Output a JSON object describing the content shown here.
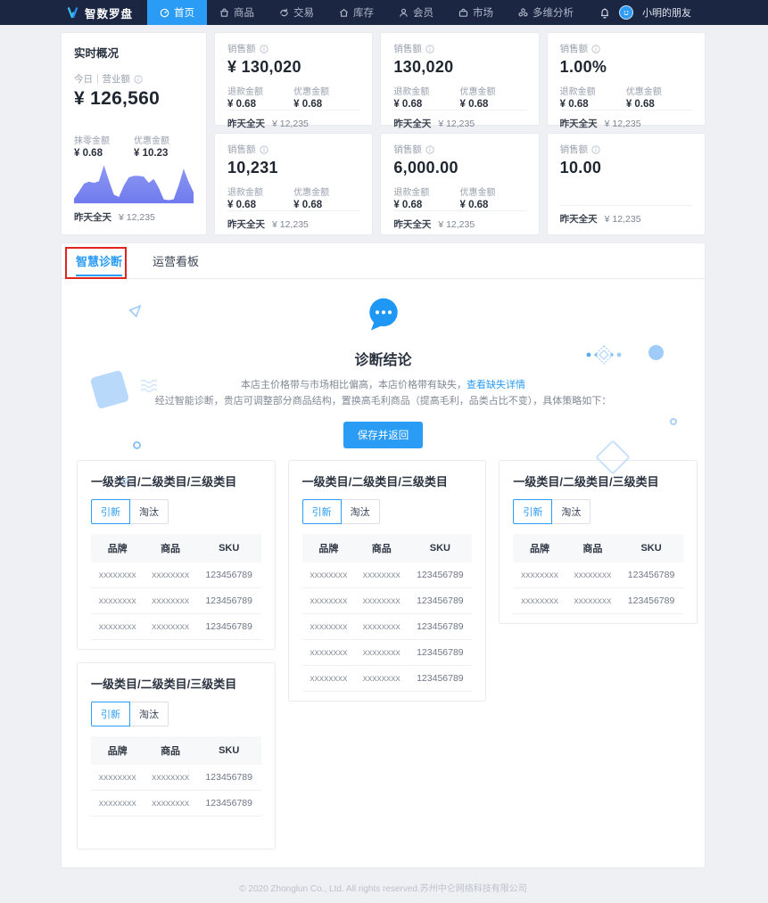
{
  "navbar": {
    "brand": "智数罗盘",
    "items": [
      {
        "label": "首页",
        "active": true
      },
      {
        "label": "商品",
        "active": false
      },
      {
        "label": "交易",
        "active": false
      },
      {
        "label": "库存",
        "active": false
      },
      {
        "label": "会员",
        "active": false
      },
      {
        "label": "市场",
        "active": false
      },
      {
        "label": "多维分析",
        "active": false
      }
    ],
    "user_name": "小明的朋友"
  },
  "realtime": {
    "title": "实时概况",
    "metric_label": "今日｜营业额",
    "metric_value": "¥ 126,560",
    "subs": [
      {
        "label": "抹零金额",
        "value": "¥ 0.68"
      },
      {
        "label": "优惠金额",
        "value": "¥ 10.23"
      }
    ],
    "footer_label": "昨天全天",
    "footer_value": "¥ 12,235"
  },
  "chart_data": {
    "type": "area",
    "title": "今日营业额走势 sparkline",
    "x": [
      0,
      1,
      2,
      3,
      4,
      5,
      6,
      7,
      8,
      9,
      10,
      11,
      12,
      13,
      14,
      15,
      16,
      17,
      18,
      19,
      20,
      21,
      22,
      23,
      24
    ],
    "values": [
      12,
      30,
      50,
      55,
      52,
      56,
      97,
      58,
      22,
      16,
      45,
      66,
      70,
      70,
      68,
      52,
      62,
      40,
      10,
      8,
      10,
      45,
      88,
      55,
      28
    ],
    "ylim": [
      0,
      100
    ],
    "xlabel": "",
    "ylabel": "",
    "grid": false,
    "legend": "none",
    "color": "#7b86ef"
  },
  "stat_cards": [
    {
      "title": "销售额",
      "value": "¥ 130,020",
      "subs": [
        {
          "label": "退款金额",
          "value": "¥ 0.68"
        },
        {
          "label": "优惠金额",
          "value": "¥ 0.68"
        }
      ],
      "footer_label": "昨天全天",
      "footer_value": "¥ 12,235"
    },
    {
      "title": "销售额",
      "value": "130,020",
      "subs": [
        {
          "label": "退款金额",
          "value": "¥ 0.68"
        },
        {
          "label": "优惠金额",
          "value": "¥ 0.68"
        }
      ],
      "footer_label": "昨天全天",
      "footer_value": "¥ 12,235"
    },
    {
      "title": "销售额",
      "value": "1.00%",
      "subs": [
        {
          "label": "退款金额",
          "value": "¥ 0.68"
        },
        {
          "label": "优惠金额",
          "value": "¥ 0.68"
        }
      ],
      "footer_label": "昨天全天",
      "footer_value": "¥ 12,235"
    },
    {
      "title": "销售额",
      "value": "10,231",
      "subs": [
        {
          "label": "退款金额",
          "value": "¥ 0.68"
        },
        {
          "label": "优惠金额",
          "value": "¥ 0.68"
        }
      ],
      "footer_label": "昨天全天",
      "footer_value": "¥ 12,235"
    },
    {
      "title": "销售额",
      "value": "6,000.00",
      "subs": [
        {
          "label": "退款金额",
          "value": "¥ 0.68"
        },
        {
          "label": "优惠金额",
          "value": "¥ 0.68"
        }
      ],
      "footer_label": "昨天全天",
      "footer_value": "¥ 12,235"
    },
    {
      "title": "销售额",
      "value": "10.00",
      "subs": [],
      "footer_label": "昨天全天",
      "footer_value": "¥ 12,235"
    }
  ],
  "tabs": {
    "items": [
      {
        "label": "智慧诊断",
        "active": true
      },
      {
        "label": "运营看板",
        "active": false
      }
    ]
  },
  "diagnosis": {
    "title": "诊断结论",
    "line1_prefix": "本店主价格带与市场相比偏高，本店价格带有缺失，",
    "line1_link": "查看缺失详情",
    "line2": "经过智能诊断，贵店可调整部分商品结构，置换高毛利商品（提高毛利，品类占比不变），具体策略如下：",
    "save_button": "保存并返回"
  },
  "category_cards": [
    {
      "title": "一级类目/二级类目/三级类目",
      "btn_active": "引新",
      "btn_inactive": "淘汰",
      "headers": [
        "品牌",
        "商品",
        "SKU"
      ],
      "rows": [
        [
          "xxxxxxxx",
          "xxxxxxxx",
          "123456789"
        ],
        [
          "xxxxxxxx",
          "xxxxxxxx",
          "123456789"
        ],
        [
          "xxxxxxxx",
          "xxxxxxxx",
          "123456789"
        ]
      ]
    },
    {
      "title": "一级类目/二级类目/三级类目",
      "btn_active": "引新",
      "btn_inactive": "淘汰",
      "headers": [
        "品牌",
        "商品",
        "SKU"
      ],
      "rows": [
        [
          "xxxxxxxx",
          "xxxxxxxx",
          "123456789"
        ],
        [
          "xxxxxxxx",
          "xxxxxxxx",
          "123456789"
        ],
        [
          "xxxxxxxx",
          "xxxxxxxx",
          "123456789"
        ],
        [
          "xxxxxxxx",
          "xxxxxxxx",
          "123456789"
        ],
        [
          "xxxxxxxx",
          "xxxxxxxx",
          "123456789"
        ]
      ]
    },
    {
      "title": "一级类目/二级类目/三级类目",
      "btn_active": "引新",
      "btn_inactive": "淘汰",
      "headers": [
        "品牌",
        "商品",
        "SKU"
      ],
      "rows": [
        [
          "xxxxxxxx",
          "xxxxxxxx",
          "123456789"
        ],
        [
          "xxxxxxxx",
          "xxxxxxxx",
          "123456789"
        ]
      ]
    },
    {
      "title": "一级类目/二级类目/三级类目",
      "btn_active": "引新",
      "btn_inactive": "淘汰",
      "headers": [
        "品牌",
        "商品",
        "SKU"
      ],
      "rows": [
        [
          "xxxxxxxx",
          "xxxxxxxx",
          "123456789"
        ],
        [
          "xxxxxxxx",
          "xxxxxxxx",
          "123456789"
        ]
      ]
    }
  ],
  "footer_text": "© 2020 Zhonglun Co., Ltd. All rights reserved.苏州中仑网络科技有限公司",
  "colors": {
    "navbar_bg": "#1b2642",
    "accent_blue": "#2b9cf5",
    "chart_purple": "#7b86ef",
    "annotation_red": "#e0251f"
  }
}
